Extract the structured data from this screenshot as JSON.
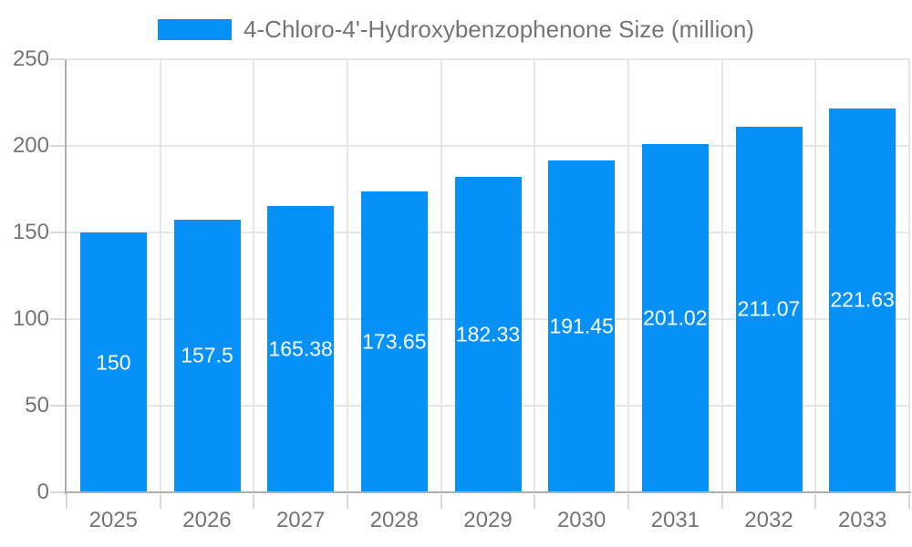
{
  "legend": {
    "series_label": "4-Chloro-4'-Hydroxybenzophenone Size (million)"
  },
  "colors": {
    "bar": "#0591f8",
    "axis_text": "#757575",
    "grid_line": "#e6e6e6",
    "axis_line": "#b0b0b0",
    "tick_line": "#d9d9d9",
    "bar_label": "#ffffff",
    "background": "#ffffff"
  },
  "chart_data": {
    "type": "bar",
    "title": "4-Chloro-4'-Hydroxybenzophenone Size (million)",
    "categories": [
      "2025",
      "2026",
      "2027",
      "2028",
      "2029",
      "2030",
      "2031",
      "2032",
      "2033"
    ],
    "values": [
      150,
      157.5,
      165.38,
      173.65,
      182.33,
      191.45,
      201.02,
      211.07,
      221.63
    ],
    "value_labels": [
      "150",
      "157.5",
      "165.38",
      "173.65",
      "182.33",
      "191.45",
      "201.02",
      "211.07",
      "221.63"
    ],
    "xlabel": "",
    "ylabel": "",
    "ylim": [
      0,
      250
    ],
    "yticks": [
      0,
      50,
      100,
      150,
      200,
      250
    ],
    "grid": true,
    "legend_position": "top",
    "value_label_position": "center-of-bar"
  }
}
